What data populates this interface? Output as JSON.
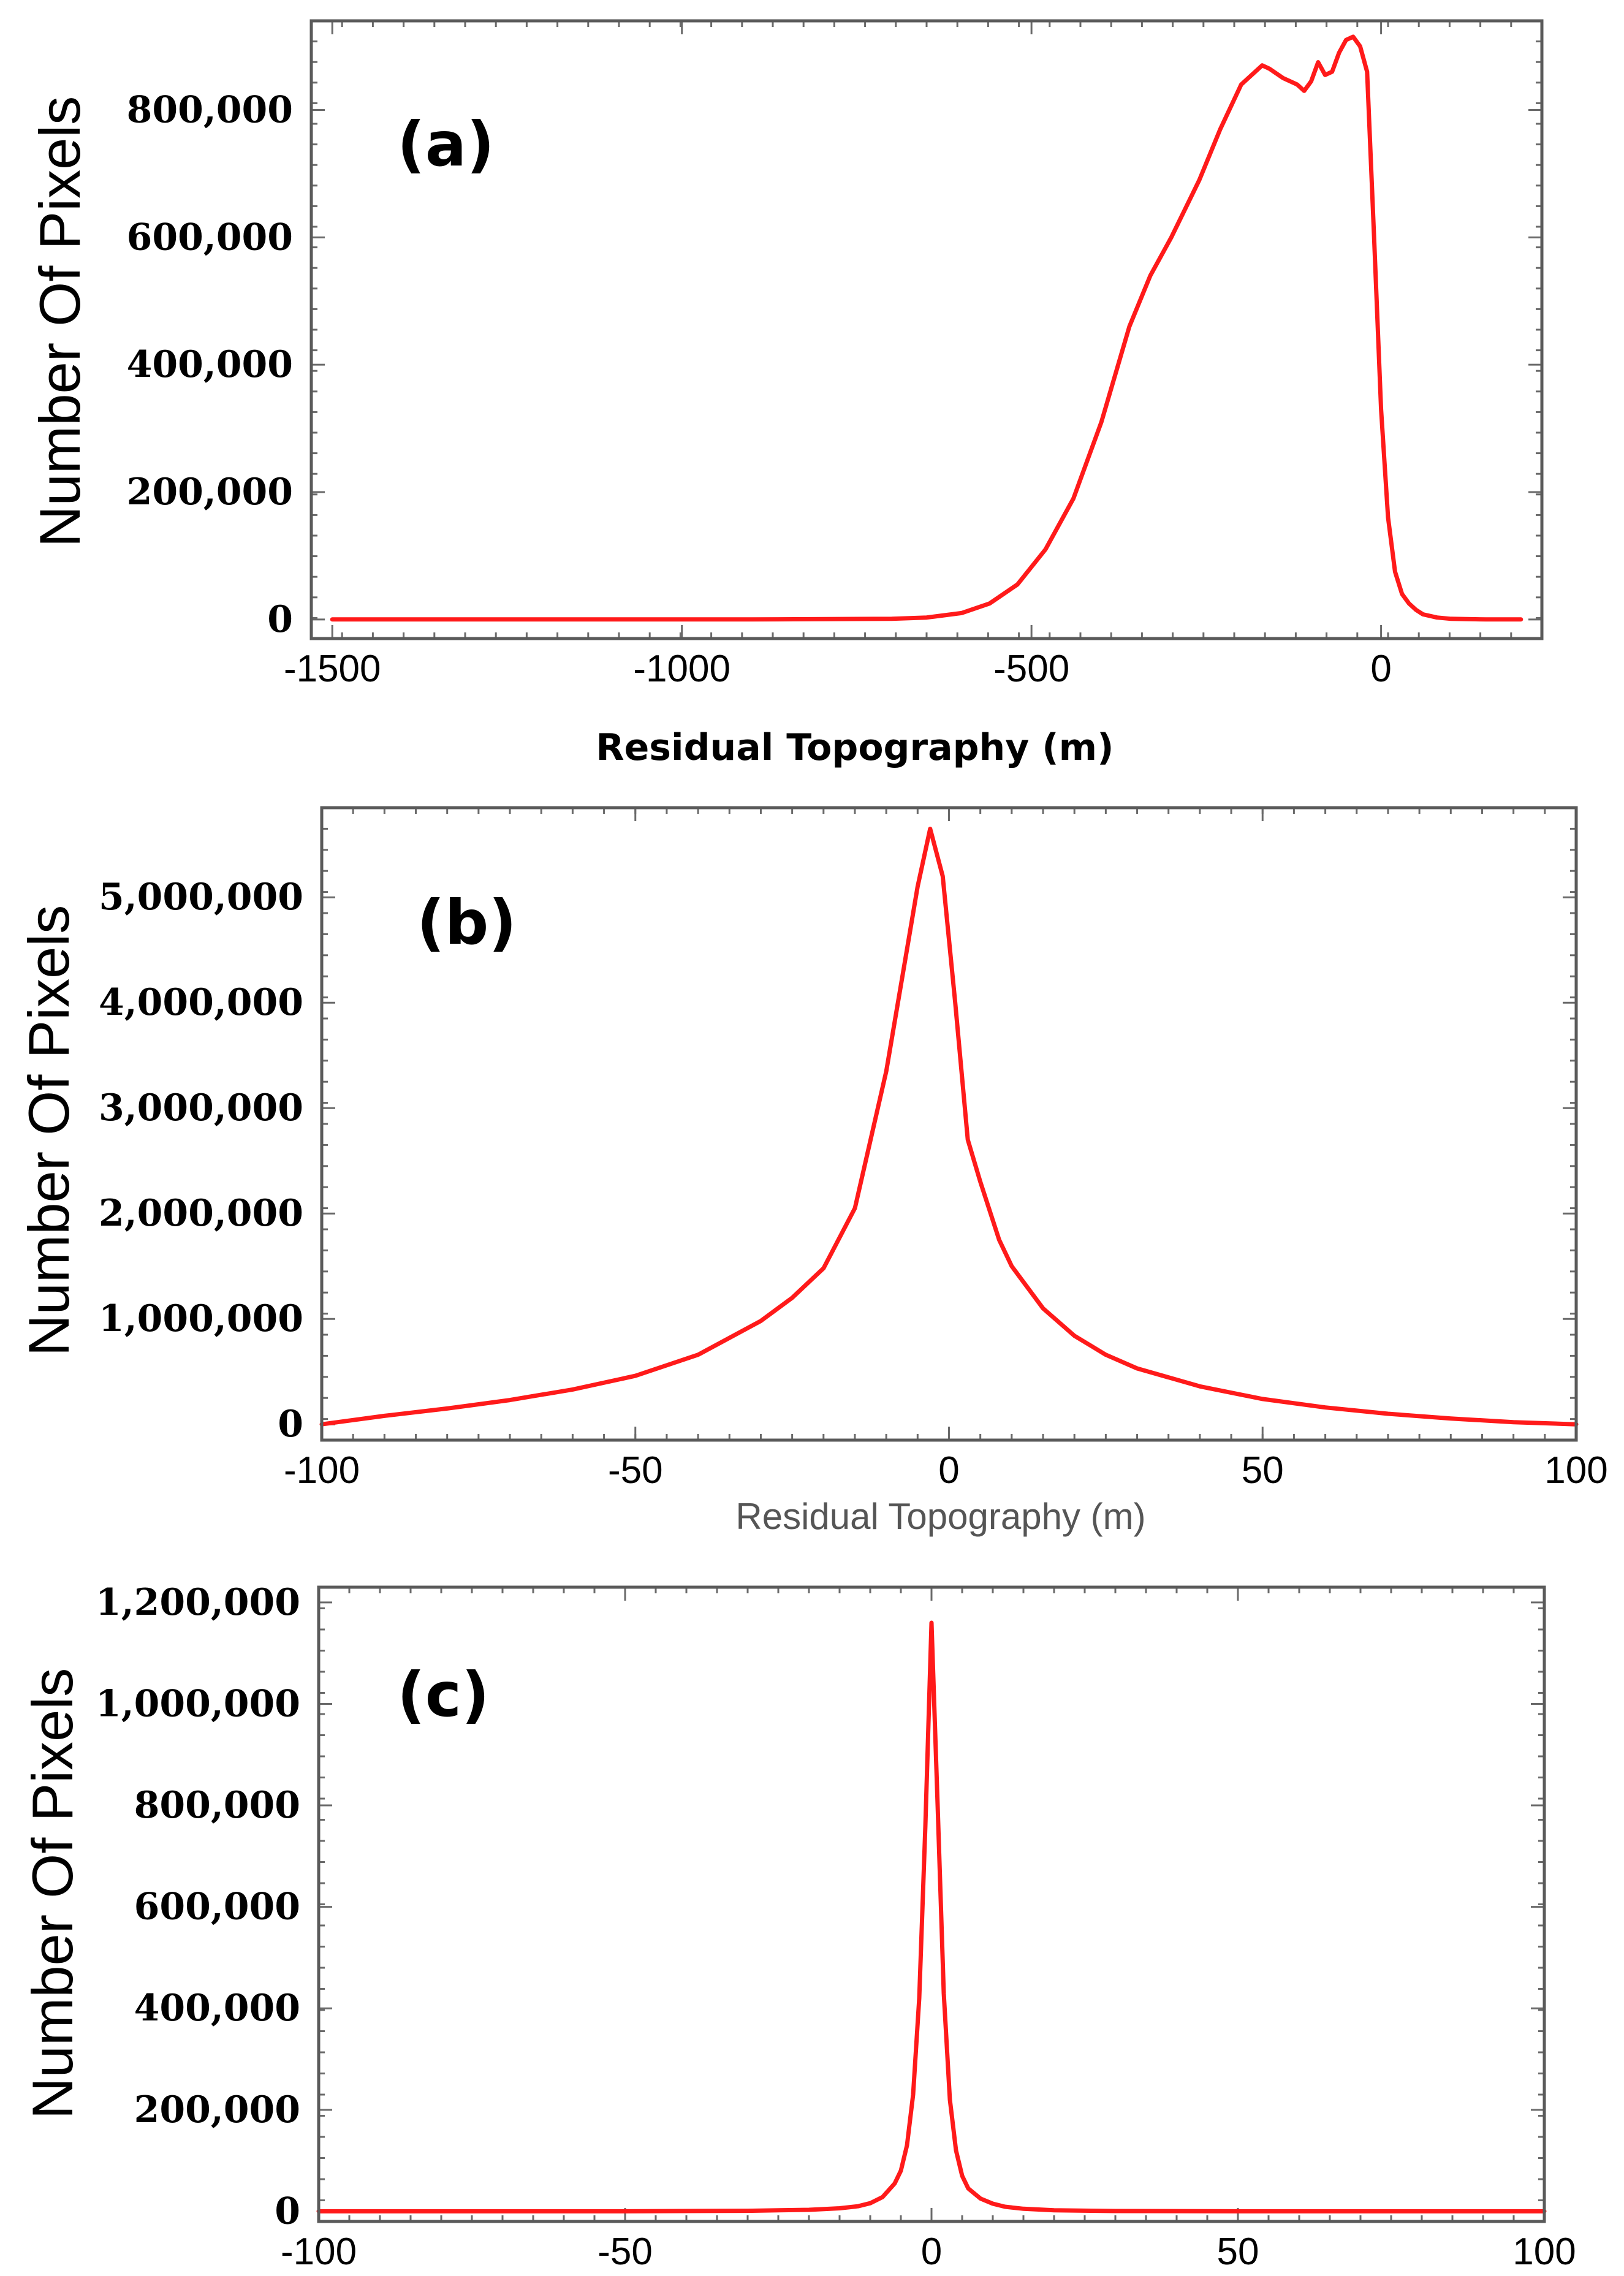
{
  "chart_data": [
    {
      "panel": "(a)",
      "type": "line",
      "title": "",
      "xlabel": "Residual Topography (m)",
      "ylabel": "Number Of Pixels",
      "xlim": [
        -1530,
        230
      ],
      "ylim": [
        -30000,
        940000
      ],
      "xticks": [
        -1500,
        -1000,
        -500,
        0
      ],
      "xtick_labels": [
        "-1500",
        "-1000",
        "-500",
        "0"
      ],
      "yticks": [
        0,
        200000,
        400000,
        600000,
        800000
      ],
      "ytick_labels": [
        "0",
        "200,000",
        "400,000",
        "600,000",
        "800,000"
      ],
      "series": [
        {
          "name": "histogram",
          "color": "#ff1a1a",
          "x": [
            -1500,
            -1200,
            -900,
            -700,
            -650,
            -600,
            -560,
            -520,
            -480,
            -440,
            -400,
            -360,
            -330,
            -300,
            -260,
            -230,
            -200,
            -170,
            -160,
            -140,
            -120,
            -110,
            -100,
            -90,
            -80,
            -70,
            -60,
            -50,
            -40,
            -30,
            -20,
            -10,
            0,
            10,
            20,
            30,
            40,
            50,
            60,
            80,
            100,
            150,
            200
          ],
          "y": [
            0,
            0,
            0,
            1000,
            3000,
            10000,
            25000,
            55000,
            110000,
            190000,
            310000,
            460000,
            540000,
            600000,
            690000,
            770000,
            840000,
            870000,
            865000,
            850000,
            840000,
            830000,
            845000,
            875000,
            855000,
            860000,
            890000,
            910000,
            915000,
            900000,
            860000,
            600000,
            330000,
            160000,
            75000,
            40000,
            25000,
            15000,
            8000,
            3000,
            1000,
            0,
            0
          ]
        }
      ]
    },
    {
      "panel": "(b)",
      "type": "line",
      "title": "",
      "xlabel": "Residual Topography (m)",
      "ylabel": "Number Of Pixels",
      "xlim": [
        -100,
        100
      ],
      "ylim": [
        -150000,
        5850000
      ],
      "xticks": [
        -100,
        -50,
        0,
        50,
        100
      ],
      "xtick_labels": [
        "-100",
        "-50",
        "0",
        "50",
        "100"
      ],
      "yticks": [
        0,
        1000000,
        2000000,
        3000000,
        4000000,
        5000000
      ],
      "ytick_labels": [
        "0",
        "1,000,000",
        "2,000,000",
        "3,000,000",
        "4,000,000",
        "5,000,000"
      ],
      "series": [
        {
          "name": "histogram",
          "color": "#ff1a1a",
          "x": [
            -100,
            -90,
            -80,
            -70,
            -60,
            -50,
            -40,
            -30,
            -25,
            -20,
            -15,
            -10,
            -7,
            -5,
            -3,
            -1,
            1,
            3,
            5,
            8,
            10,
            15,
            20,
            25,
            30,
            40,
            50,
            60,
            70,
            80,
            90,
            100
          ],
          "y": [
            0,
            80000,
            150000,
            230000,
            330000,
            460000,
            660000,
            980000,
            1200000,
            1480000,
            2050000,
            3350000,
            4400000,
            5100000,
            5650000,
            5200000,
            4000000,
            2700000,
            2300000,
            1750000,
            1500000,
            1100000,
            840000,
            660000,
            530000,
            360000,
            240000,
            160000,
            100000,
            55000,
            20000,
            0
          ]
        }
      ]
    },
    {
      "panel": "(c)",
      "type": "line",
      "title": "",
      "xlabel": "",
      "ylabel": "Number Of Pixels",
      "xlim": [
        -100,
        100
      ],
      "ylim": [
        -20000,
        1230000
      ],
      "xticks": [
        -100,
        -50,
        0,
        50,
        100
      ],
      "xtick_labels": [
        "-100",
        "-50",
        "0",
        "50",
        "100"
      ],
      "yticks": [
        0,
        200000,
        400000,
        600000,
        800000,
        1000000,
        1200000
      ],
      "ytick_labels": [
        "0",
        "200,000",
        "400,000",
        "600,000",
        "800,000",
        "1,000,000",
        "1,200,000"
      ],
      "series": [
        {
          "name": "histogram",
          "color": "#ff1a1a",
          "x": [
            -100,
            -50,
            -30,
            -20,
            -15,
            -12,
            -10,
            -8,
            -6,
            -5,
            -4,
            -3,
            -2,
            -1,
            0,
            1,
            2,
            3,
            4,
            5,
            6,
            8,
            10,
            12,
            15,
            20,
            30,
            50,
            100
          ],
          "y": [
            0,
            0,
            1000,
            3000,
            6000,
            10000,
            16000,
            28000,
            55000,
            80000,
            130000,
            230000,
            420000,
            760000,
            1160000,
            800000,
            430000,
            220000,
            120000,
            70000,
            45000,
            25000,
            15000,
            9000,
            5000,
            2000,
            500,
            0,
            0
          ]
        }
      ]
    }
  ]
}
